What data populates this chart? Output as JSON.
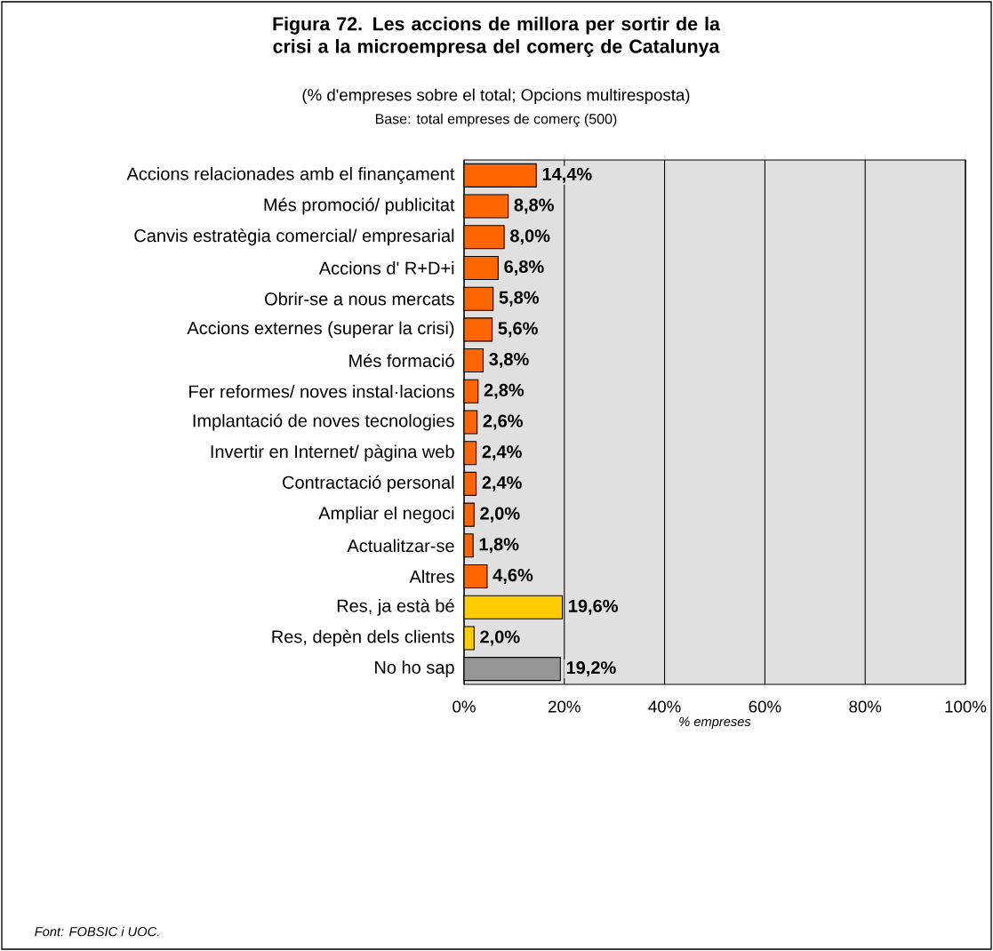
{
  "chart_data": {
    "type": "bar",
    "orientation": "horizontal",
    "title": "Figura 72. Les accions de millora per sortir de la crisi a la microempresa del comerç de Catalunya",
    "subtitle": "(% d'empreses sobre el total; Opcions multiresposta)",
    "xlabel": "% empreses",
    "categories": [
      "Accions relacionades amb el finançament",
      "Més promoció/ publicitat",
      "Canvis estratègia comercial/ empresarial",
      "Accions d' R+D+i",
      "Obrir-se a nous mercats",
      "Accions externes (superar la crisi)",
      "Més formació",
      "Fer reformes/ noves instal·lacions",
      "Implantació de noves tecnologies",
      "Invertir en Internet/ pàgina web",
      "Contractació personal",
      "Ampliar el negoci",
      "Actualitzar-se",
      "Altres",
      "Res, ja està bé",
      "Res, depèn dels clients",
      "No ho sap"
    ],
    "values": [
      14.4,
      8.8,
      8.0,
      6.8,
      5.8,
      5.6,
      3.8,
      2.8,
      2.6,
      2.4,
      2.4,
      2.0,
      1.8,
      4.6,
      19.6,
      2.0,
      19.2
    ],
    "value_labels": [
      "14,4%",
      "8,8%",
      "8,0%",
      "6,8%",
      "5,8%",
      "5,6%",
      "3,8%",
      "2,8%",
      "2,6%",
      "2,4%",
      "2,4%",
      "2,0%",
      "1,8%",
      "4,6%",
      "19,6%",
      "2,0%",
      "19,2%"
    ],
    "colors": [
      "#ff6600",
      "#ff6600",
      "#ff6600",
      "#ff6600",
      "#ff6600",
      "#ff6600",
      "#ff6600",
      "#ff6600",
      "#ff6600",
      "#ff6600",
      "#ff6600",
      "#ff6600",
      "#ff6600",
      "#ff6600",
      "#ffcc00",
      "#ffcc00",
      "#969696"
    ],
    "xlim": [
      0,
      100
    ],
    "xticks": [
      {
        "value": 0,
        "label": "0%"
      },
      {
        "value": 20,
        "label": "20%"
      },
      {
        "value": 40,
        "label": "40%"
      },
      {
        "value": 60,
        "label": "60%"
      },
      {
        "value": 80,
        "label": "80%"
      },
      {
        "value": 100,
        "label": "100%"
      }
    ],
    "grid": "x",
    "annotations": [
      "Base: total empreses de comerç (500)",
      "Font: FOBSIC i UOC."
    ]
  }
}
